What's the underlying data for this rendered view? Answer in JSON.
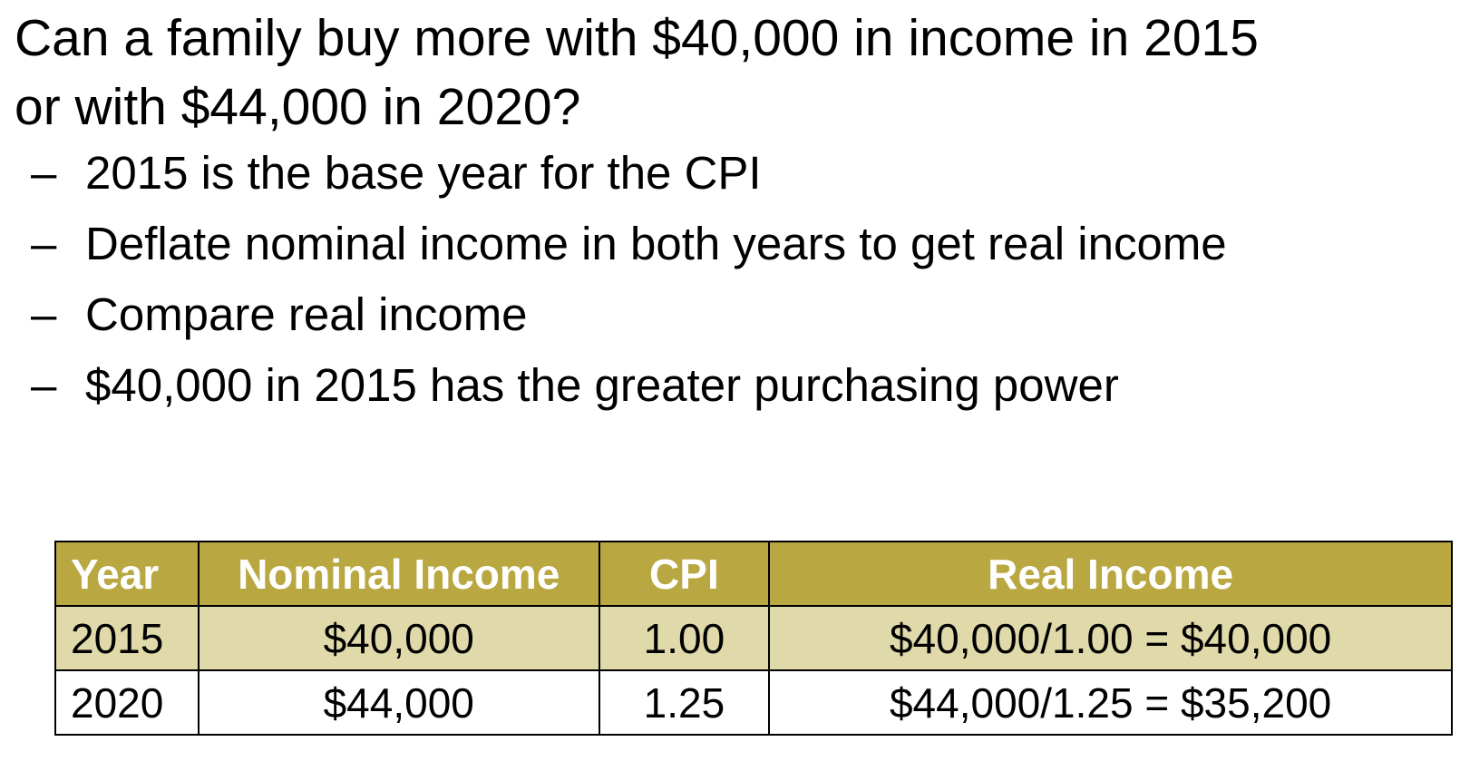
{
  "slide": {
    "title_line1": "Can a family buy more with $40,000 in income in 2015",
    "title_line2": "or with $44,000 in 2020?",
    "bullets": [
      "2015 is the base year for the CPI",
      "Deflate nominal income in both years to get real income",
      "Compare real income",
      "$40,000 in 2015 has the greater purchasing power"
    ],
    "bullet_marker": "–"
  },
  "table": {
    "headers": [
      "Year",
      "Nominal Income",
      "CPI",
      "Real Income"
    ],
    "rows": [
      [
        "2015",
        "$40,000",
        "1.00",
        "$40,000/1.00 = $40,000"
      ],
      [
        "2020",
        "$44,000",
        "1.25",
        "$44,000/1.25 = $35,200"
      ]
    ]
  },
  "colors": {
    "header_bg": "#b9a841",
    "header_text": "#ffffff",
    "band_row_bg": "#e0d9a9",
    "plain_row_bg": "#ffffff"
  }
}
